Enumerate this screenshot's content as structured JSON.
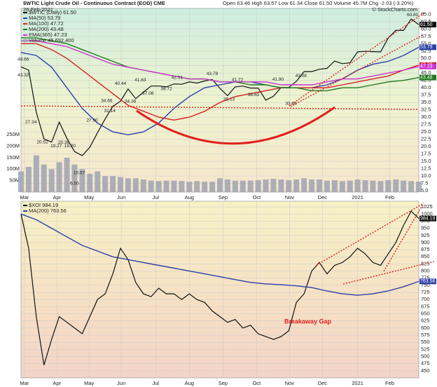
{
  "chart_data": [
    {
      "type": "line",
      "title": "$WTIC Light Crude Oil - Continuous Contract (EOD) CME",
      "subtitle": "26-Feb-2021",
      "quote": "Open 63.46 High 63.57 Low 61.34 Close 61.50 Volume 45.7M Chg -2.03 (-3.20%)",
      "credit": "© StockCharts.com",
      "xlim": [
        0,
        52
      ],
      "xticks": [
        {
          "value": 0.45,
          "label": "Mar"
        },
        {
          "value": 4.7,
          "label": "Apr"
        },
        {
          "value": 8.9,
          "label": "May"
        },
        {
          "value": 13.1,
          "label": "Jun"
        },
        {
          "value": 17.6,
          "label": "Jul"
        },
        {
          "value": 22,
          "label": "Aug"
        },
        {
          "value": 26.4,
          "label": "Sep"
        },
        {
          "value": 30.8,
          "label": "Oct"
        },
        {
          "value": 35.1,
          "label": "Nov"
        },
        {
          "value": 39.4,
          "label": "Dec"
        },
        {
          "value": 44,
          "label": "2021"
        },
        {
          "value": 48.2,
          "label": "Feb"
        }
      ],
      "ylim": [
        4.5,
        67
      ],
      "yticks": [
        {
          "value": 5,
          "label": "5.0"
        },
        7.5,
        {
          "value": 10,
          "label": "10.0"
        },
        12.5,
        {
          "value": 15,
          "label": "15.0"
        },
        17.5,
        {
          "value": 20,
          "label": "20.0"
        },
        22.5,
        {
          "value": 25,
          "label": "25.0"
        },
        27.5,
        {
          "value": 30,
          "label": "30.0"
        },
        32.5,
        {
          "value": 35,
          "label": "35.0"
        },
        37.5,
        {
          "value": 40,
          "label": "40.0"
        },
        42.5,
        {
          "value": 45,
          "label": "45.0"
        },
        47.5,
        {
          "value": 50,
          "label": "50.0"
        },
        52.5,
        {
          "value": 55,
          "label": "55.0"
        },
        57.5,
        {
          "value": 60,
          "label": "60.0"
        },
        62.5,
        {
          "value": 65,
          "label": "65.0"
        }
      ],
      "grid": true,
      "series": [
        {
          "name": "$WTIC (Daily) 61.50",
          "color": "#111111",
          "badge": "61.50",
          "x": [
            0,
            1,
            2,
            3,
            4,
            5,
            6,
            7,
            8,
            9,
            10,
            11,
            12,
            13,
            14,
            15,
            16,
            17,
            18,
            19,
            20,
            21,
            22,
            23,
            24,
            25,
            26,
            27,
            28,
            29,
            30,
            31,
            32,
            33,
            34,
            35,
            36,
            37,
            38,
            39,
            40,
            41,
            42,
            43,
            44,
            45,
            46,
            47,
            48,
            49,
            50,
            51,
            52
          ],
          "values": [
            47.1,
            46.0,
            31.7,
            22.6,
            21.5,
            28.3,
            22.8,
            18.3,
            16.9,
            19.8,
            24.7,
            29.4,
            33.7,
            35.4,
            39.6,
            36.3,
            38.5,
            40.6,
            40.6,
            40.3,
            41.3,
            41.2,
            42.0,
            41.6,
            42.3,
            42.8,
            39.8,
            37.3,
            40.3,
            40.6,
            39.9,
            39.9,
            35.8,
            37.1,
            40.1,
            40.1,
            42.2,
            45.5,
            45.5,
            46.3,
            46.6,
            49.1,
            48.2,
            48.5,
            52.2,
            52.4,
            52.3,
            52.2,
            56.9,
            59.5,
            59.5,
            63.4,
            61.5
          ]
        },
        {
          "name": "MA(50) 53.79",
          "color": "#2b3fa8",
          "badge": "53.79",
          "x": [
            0,
            2,
            4,
            6,
            8,
            10,
            12,
            14,
            16,
            18,
            20,
            22,
            24,
            26,
            28,
            30,
            32,
            34,
            36,
            38,
            40,
            42,
            44,
            46,
            48,
            50,
            52
          ],
          "values": [
            52,
            51,
            47,
            40,
            33,
            28,
            25,
            24,
            25,
            28,
            33,
            37,
            40,
            41,
            42,
            42,
            41,
            40,
            40,
            40,
            41,
            43,
            46,
            48,
            49,
            51,
            53.79
          ]
        },
        {
          "name": "MA(100) 47.72",
          "color": "#d42020",
          "badge": "47.72",
          "x": [
            0,
            2,
            4,
            6,
            8,
            10,
            12,
            14,
            16,
            18,
            20,
            22,
            24,
            26,
            28,
            30,
            32,
            34,
            36,
            38,
            40,
            42,
            44,
            46,
            48,
            50,
            52
          ],
          "values": [
            55,
            55,
            53,
            50,
            46,
            42,
            38,
            34,
            32,
            30,
            29,
            30,
            32,
            35,
            37,
            38,
            39,
            40,
            40,
            40,
            40,
            41,
            42,
            43,
            44,
            46,
            47.72
          ]
        },
        {
          "name": "MA(200) 43.48",
          "color": "#1f7a1f",
          "badge": "43.48",
          "x": [
            0,
            2,
            4,
            6,
            8,
            10,
            12,
            14,
            16,
            18,
            20,
            22,
            24,
            26,
            28,
            30,
            32,
            34,
            36,
            38,
            40,
            42,
            44,
            46,
            48,
            50,
            52
          ],
          "values": [
            57,
            57,
            56,
            55,
            53,
            51,
            49,
            47,
            46,
            45,
            44,
            43,
            43,
            42,
            42,
            41,
            41,
            40,
            40,
            39,
            39,
            40,
            40,
            41,
            42,
            42.5,
            43.48
          ]
        },
        {
          "name": "EMA(365) 47.23",
          "color": "#cc33cc",
          "badge": "47.23",
          "x": [
            0,
            2,
            4,
            6,
            8,
            10,
            12,
            14,
            16,
            18,
            20,
            22,
            24,
            26,
            28,
            30,
            32,
            34,
            36,
            38,
            40,
            42,
            44,
            46,
            48,
            50,
            52
          ],
          "values": [
            56,
            56,
            55,
            54,
            52,
            50,
            48,
            47,
            46,
            45,
            44,
            43,
            43,
            42,
            42,
            42,
            42,
            41,
            41,
            41,
            42,
            43,
            43,
            44,
            45,
            46,
            47.23
          ]
        }
      ],
      "volume": {
        "name": "Volume 45,692,400",
        "color": "#9ea3b3",
        "ylim": [
          0,
          800000000
        ],
        "yticks": [
          {
            "value": 50000000,
            "label": "50M"
          },
          {
            "value": 100000000,
            "label": "100M"
          },
          {
            "value": 150000000,
            "label": "150M"
          },
          {
            "value": 200000000,
            "label": "200M"
          },
          {
            "value": 250000000,
            "label": "250M"
          }
        ],
        "values": [
          90000000,
          110000000,
          160000000,
          120000000,
          100000000,
          130000000,
          150000000,
          120000000,
          100000000,
          80000000,
          90000000,
          70000000,
          70000000,
          65000000,
          60000000,
          60000000,
          55000000,
          50000000,
          48000000,
          50000000,
          50000000,
          48000000,
          45000000,
          48000000,
          45000000,
          45000000,
          60000000,
          55000000,
          50000000,
          50000000,
          50000000,
          52000000,
          55000000,
          58000000,
          55000000,
          52000000,
          55000000,
          60000000,
          55000000,
          55000000,
          50000000,
          52000000,
          48000000,
          50000000,
          55000000,
          52000000,
          50000000,
          48000000,
          52000000,
          55000000,
          50000000,
          48000000,
          45700000
        ]
      },
      "price_labels": [
        {
          "x": 0.3,
          "value": 48.66
        },
        {
          "x": 0.3,
          "value": 43.32
        },
        {
          "x": 1.3,
          "value": 27.34
        },
        {
          "x": 2.8,
          "value": 20.52
        },
        {
          "x": 4.6,
          "value": 19.27
        },
        {
          "x": 5.6,
          "value": 20.36
        },
        {
          "x": 6.4,
          "value": 19.2,
          "label": "19.20"
        },
        {
          "x": 7.6,
          "value": 10.07
        },
        {
          "x": 7.0,
          "value": 6.5,
          "label": "6.50"
        },
        {
          "x": 9.3,
          "value": 27.9,
          "label": "27.90"
        },
        {
          "x": 11.6,
          "value": 31.14
        },
        {
          "x": 11.2,
          "value": 34.66
        },
        {
          "x": 14.3,
          "value": 34.36
        },
        {
          "x": 13.0,
          "value": 40.44
        },
        {
          "x": 15.6,
          "value": 41.63
        },
        {
          "x": 16.6,
          "value": 37.08
        },
        {
          "x": 19.0,
          "value": 38.72
        },
        {
          "x": 20.4,
          "value": 42.51
        },
        {
          "x": 25.0,
          "value": 43.78
        },
        {
          "x": 27.2,
          "value": 35.13
        },
        {
          "x": 28.3,
          "value": 41.72
        },
        {
          "x": 30.4,
          "value": 36.63
        },
        {
          "x": 33.6,
          "value": 41.9,
          "label": "41.90"
        },
        {
          "x": 35.3,
          "value": 33.64
        },
        {
          "x": 36.6,
          "value": 43.08
        },
        {
          "x": 51.2,
          "value": 63.81
        }
      ]
    },
    {
      "type": "line",
      "xlim": [
        0,
        52
      ],
      "xticks": [
        {
          "value": 0.45,
          "label": "Mar"
        },
        {
          "value": 4.7,
          "label": "Apr"
        },
        {
          "value": 8.9,
          "label": "May"
        },
        {
          "value": 13.1,
          "label": "Jun"
        },
        {
          "value": 17.6,
          "label": "Jul"
        },
        {
          "value": 22,
          "label": "Aug"
        },
        {
          "value": 26.4,
          "label": "Sep"
        },
        {
          "value": 30.8,
          "label": "Oct"
        },
        {
          "value": 35.1,
          "label": "Nov"
        },
        {
          "value": 39.4,
          "label": "Dec"
        },
        {
          "value": 44,
          "label": "2021"
        },
        {
          "value": 48.2,
          "label": "Feb"
        }
      ],
      "ylim": [
        425,
        1045
      ],
      "yticks": [
        450,
        475,
        500,
        525,
        550,
        575,
        600,
        625,
        650,
        675,
        700,
        725,
        750,
        775,
        800,
        825,
        850,
        875,
        900,
        925,
        950,
        975,
        1000,
        1025
      ],
      "grid": true,
      "annotation": "Breakaway Gap",
      "series": [
        {
          "name": "$XOI 984.19",
          "color": "#111111",
          "badge": "984.19",
          "x": [
            0,
            1,
            2,
            3,
            4,
            5,
            6,
            7,
            8,
            9,
            10,
            11,
            12,
            13,
            14,
            15,
            16,
            17,
            18,
            19,
            20,
            21,
            22,
            23,
            24,
            25,
            26,
            27,
            28,
            29,
            30,
            31,
            32,
            33,
            34,
            35,
            36,
            37,
            38,
            39,
            40,
            41,
            42,
            43,
            44,
            45,
            46,
            47,
            48,
            49,
            50,
            51,
            52
          ],
          "values": [
            1000,
            880,
            640,
            470,
            560,
            640,
            620,
            600,
            580,
            640,
            700,
            720,
            790,
            880,
            840,
            760,
            720,
            710,
            740,
            720,
            720,
            700,
            720,
            700,
            690,
            660,
            640,
            620,
            630,
            600,
            610,
            580,
            570,
            560,
            570,
            590,
            690,
            720,
            800,
            830,
            790,
            820,
            830,
            850,
            880,
            860,
            830,
            820,
            860,
            900,
            960,
            1010,
            984.19
          ]
        },
        {
          "name": "MA(200) 763.56",
          "color": "#2b3fa8",
          "badge": "763.56",
          "x": [
            0,
            2,
            4,
            6,
            8,
            10,
            12,
            14,
            16,
            18,
            20,
            22,
            24,
            26,
            28,
            30,
            32,
            34,
            36,
            38,
            40,
            42,
            44,
            46,
            48,
            50,
            52
          ],
          "values": [
            1000,
            980,
            950,
            920,
            890,
            870,
            850,
            840,
            830,
            820,
            810,
            800,
            790,
            780,
            770,
            760,
            755,
            752,
            748,
            742,
            730,
            720,
            715,
            720,
            730,
            745,
            763.56
          ]
        }
      ]
    }
  ]
}
